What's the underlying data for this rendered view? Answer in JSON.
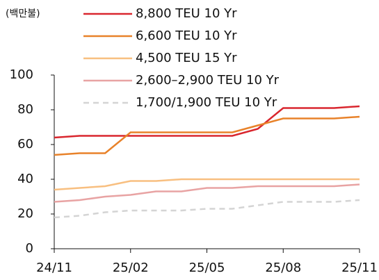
{
  "chart_data": {
    "type": "line",
    "unit_label": "(백만불)",
    "x": [
      "24/11",
      "24/12",
      "25/01",
      "25/02",
      "25/03",
      "25/04",
      "25/05",
      "25/06",
      "25/07",
      "25/08",
      "25/09",
      "25/10",
      "25/11"
    ],
    "xticks": [
      "24/11",
      "25/02",
      "25/05",
      "25/08",
      "25/11"
    ],
    "ylim": [
      0,
      100
    ],
    "yticks": [
      0,
      20,
      40,
      60,
      80,
      100
    ],
    "series": [
      {
        "name": "8,800 TEU 10 Yr",
        "color": "#d9262e",
        "values": [
          64,
          65,
          65,
          65,
          65,
          65,
          65,
          65,
          69,
          81,
          81,
          81,
          82
        ]
      },
      {
        "name": "6,600 TEU 10 Yr",
        "color": "#e8822a",
        "values": [
          54,
          55,
          55,
          67,
          67,
          67,
          67,
          67,
          71,
          75,
          75,
          75,
          76
        ]
      },
      {
        "name": "4,500 TEU 15 Yr",
        "color": "#f8bf80",
        "values": [
          34,
          35,
          36,
          39,
          39,
          40,
          40,
          40,
          40,
          40,
          40,
          40,
          40
        ]
      },
      {
        "name": "2,600–2,900 TEU 10 Yr",
        "color": "#e8a3a3",
        "values": [
          27,
          28,
          30,
          31,
          33,
          33,
          35,
          35,
          36,
          36,
          36,
          36,
          37
        ]
      },
      {
        "name": "1,700/1,900 TEU 10 Yr",
        "color": "#d4d4d4",
        "dashed": true,
        "values": [
          18,
          19,
          21,
          22,
          22,
          22,
          23,
          23,
          25,
          27,
          27,
          27,
          28
        ]
      }
    ]
  }
}
